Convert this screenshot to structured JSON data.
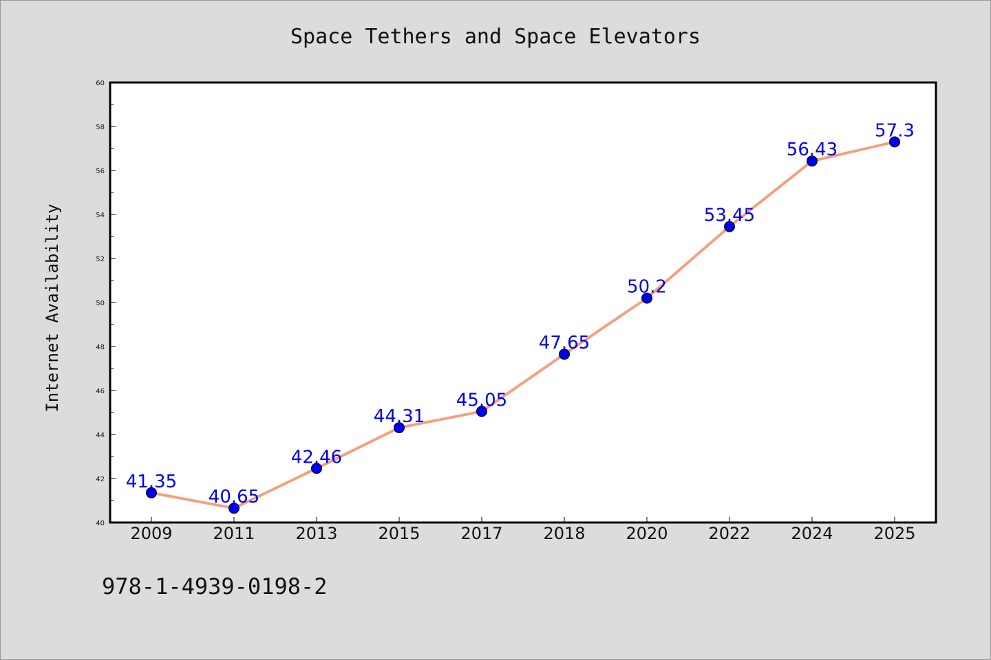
{
  "chart_data": {
    "type": "line",
    "title": "Space Tethers and Space Elevators",
    "xlabel": "",
    "ylabel": "Internet Availability",
    "x": [
      "2009",
      "2011",
      "2013",
      "2015",
      "2017",
      "2018",
      "2020",
      "2022",
      "2024",
      "2025"
    ],
    "series": [
      {
        "values": [
          41.35,
          40.65,
          42.46,
          44.31,
          45.05,
          47.65,
          50.2,
          53.45,
          56.43,
          57.3
        ],
        "labels": [
          "41.35",
          "40.65",
          "42.46",
          "44.31",
          "45.05",
          "47.65",
          "50.2",
          "53.45",
          "56.43",
          "57.3"
        ]
      }
    ],
    "ylim": [
      40,
      60
    ],
    "yticks": [
      "40",
      "42",
      "44",
      "46",
      "48",
      "50",
      "52",
      "54",
      "56",
      "58",
      "60"
    ],
    "grid": false,
    "colors": {
      "line": "#f4a07e",
      "marker": "#0000ee",
      "label": "#0000ee",
      "background": "#dcdcdc",
      "plot_background": "#ffffff"
    }
  },
  "footer": {
    "isbn": "978-1-4939-0198-2"
  }
}
